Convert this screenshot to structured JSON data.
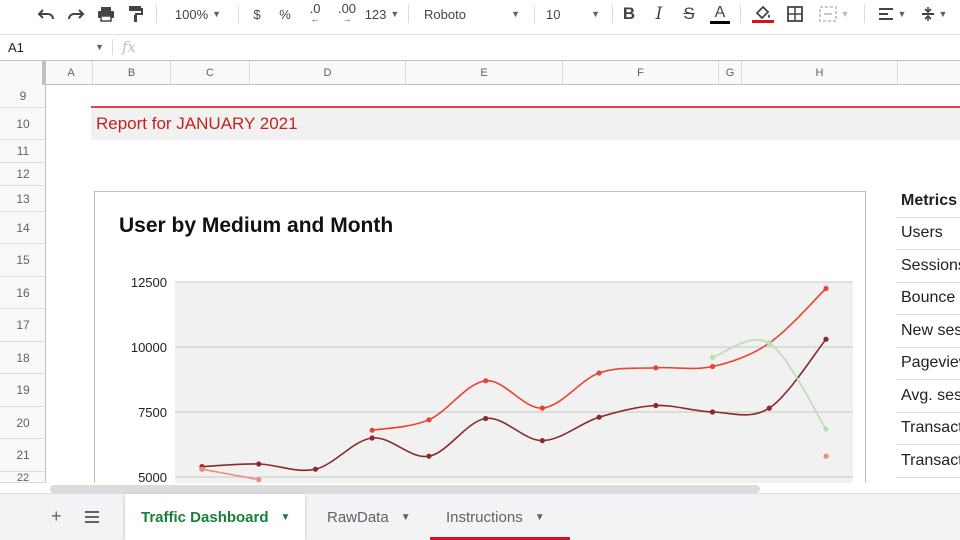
{
  "toolbar": {
    "zoom": "100%",
    "currency": "$",
    "percent": "%",
    "decrease_decimal": ".0",
    "increase_decimal": ".00",
    "more_formats": "123",
    "font": "Roboto",
    "font_size": "10",
    "colors": {
      "text_underline": "#000000",
      "fill_underline": "#d50f25"
    }
  },
  "formula_bar": {
    "cell_ref": "A1",
    "fx": "fx",
    "value": ""
  },
  "columns": [
    "A",
    "B",
    "C",
    "D",
    "E",
    "F",
    "G",
    "H"
  ],
  "rows": [
    "9",
    "10",
    "11",
    "12",
    "13",
    "14",
    "15",
    "16",
    "17",
    "18",
    "19",
    "20",
    "21",
    "22"
  ],
  "report_title": "Report for JANUARY 2021",
  "chart_data": {
    "type": "line",
    "title": "User by Medium and Month",
    "xlabel": "",
    "ylabel": "",
    "ylim": [
      5000,
      12500
    ],
    "yticks": [
      "12500",
      "10000",
      "7500",
      "5000"
    ],
    "grid": true,
    "x": [
      1,
      2,
      3,
      4,
      5,
      6,
      7,
      8,
      9,
      10,
      11,
      12
    ],
    "series": [
      {
        "color": "#ea4335",
        "values": [
          5300,
          null,
          null,
          6800,
          7200,
          8700,
          7650,
          9000,
          9200,
          9250,
          10150,
          12250
        ]
      },
      {
        "color": "#8b2a2a",
        "values": [
          5400,
          5500,
          5300,
          6500,
          5800,
          7250,
          6400,
          7300,
          7750,
          7500,
          7650,
          10300
        ]
      },
      {
        "color": "#b7dfb0",
        "values": [
          null,
          null,
          null,
          null,
          null,
          null,
          null,
          null,
          null,
          9600,
          10150,
          6850
        ]
      },
      {
        "color": "#f08a80",
        "values": [
          5300,
          4900,
          null,
          null,
          null,
          null,
          null,
          null,
          null,
          null,
          null,
          5800
        ]
      }
    ]
  },
  "metrics": {
    "header": "Metrics",
    "items": [
      "Users",
      "Sessions",
      "Bounce rate",
      "New sessions",
      "Pageviews",
      "Avg. session",
      "Transactions",
      "Transaction"
    ]
  },
  "tabs": [
    {
      "label": "Traffic Dashboard",
      "active": true
    },
    {
      "label": "RawData",
      "active": false
    },
    {
      "label": "Instructions",
      "active": false
    }
  ]
}
